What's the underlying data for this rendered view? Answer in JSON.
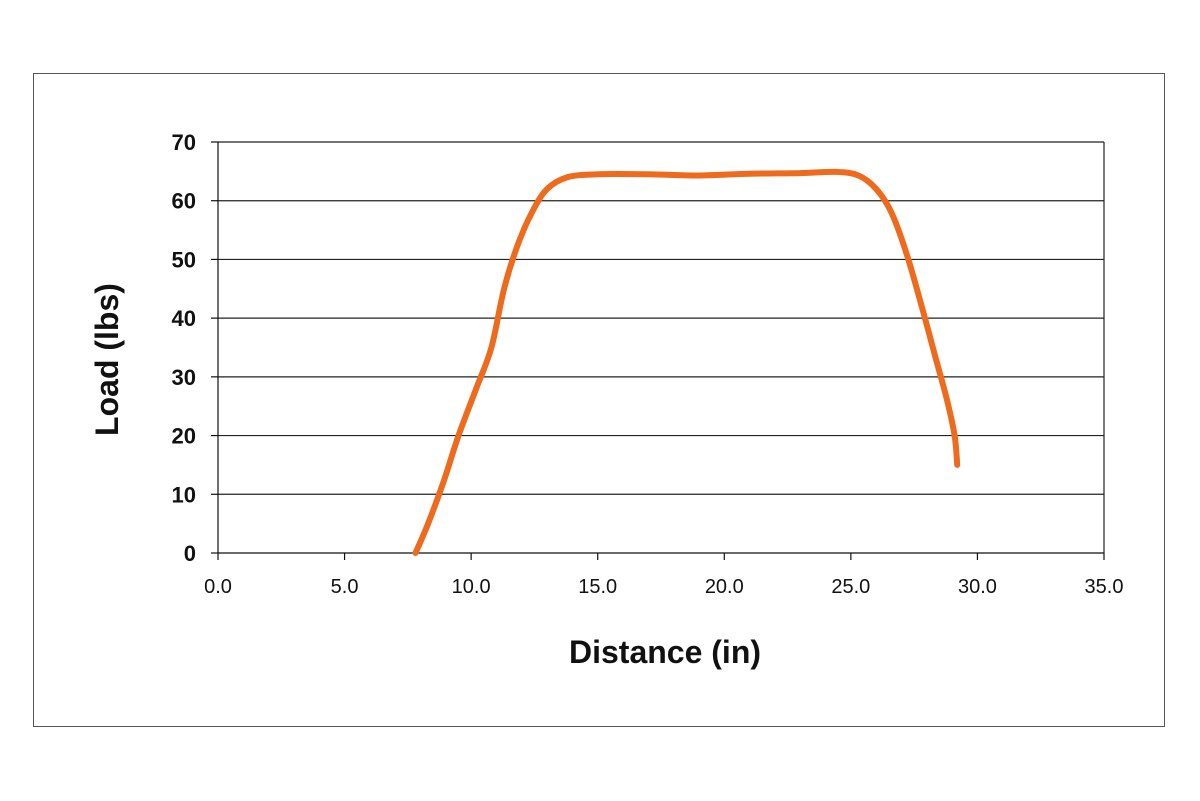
{
  "chart_data": {
    "type": "line",
    "title": "",
    "xlabel": "Distance (in)",
    "ylabel": "Load (lbs)",
    "xlim": [
      0,
      35
    ],
    "ylim": [
      0,
      70
    ],
    "x_ticks": [
      "0.0",
      "5.0",
      "10.0",
      "15.0",
      "20.0",
      "25.0",
      "30.0",
      "35.0"
    ],
    "y_ticks": [
      "0",
      "10",
      "20",
      "30",
      "40",
      "50",
      "60",
      "70"
    ],
    "grid": "horizontal",
    "legend": "none",
    "series": [
      {
        "color": "#ee6b1e",
        "points": [
          [
            7.8,
            0
          ],
          [
            8.3,
            5
          ],
          [
            8.9,
            12
          ],
          [
            9.5,
            20
          ],
          [
            10.2,
            28
          ],
          [
            10.8,
            35
          ],
          [
            11.3,
            45
          ],
          [
            11.8,
            52
          ],
          [
            12.4,
            58
          ],
          [
            13.0,
            62
          ],
          [
            13.8,
            64
          ],
          [
            15.0,
            64.5
          ],
          [
            17.0,
            64.5
          ],
          [
            19.0,
            64.3
          ],
          [
            21.0,
            64.6
          ],
          [
            23.0,
            64.7
          ],
          [
            24.4,
            64.9
          ],
          [
            25.3,
            64.3
          ],
          [
            26.0,
            62
          ],
          [
            26.6,
            58
          ],
          [
            27.2,
            51
          ],
          [
            27.8,
            42
          ],
          [
            28.3,
            34
          ],
          [
            28.8,
            26
          ],
          [
            29.1,
            20
          ],
          [
            29.2,
            15
          ]
        ]
      }
    ]
  }
}
